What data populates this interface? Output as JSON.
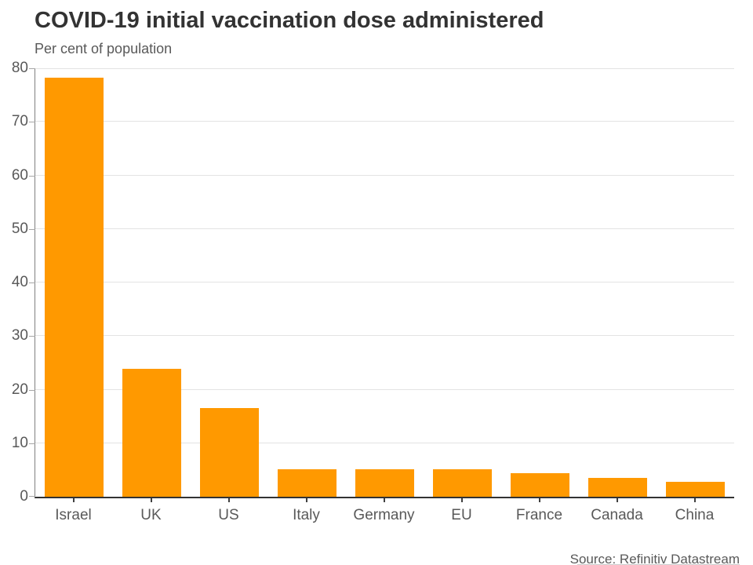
{
  "page": {
    "title": "COVID-19 initial vaccination dose administered",
    "subtitle": "Per cent of population",
    "source": "Source: Refinitiv Datastream"
  },
  "colors": {
    "bar": "#FF9900",
    "title_text": "#333333",
    "muted_text": "#595959",
    "gridline": "#e3e3e3",
    "axis_line": "#333333"
  },
  "chart_data": {
    "type": "bar",
    "title": "COVID-19 initial vaccination dose administered",
    "subtitle": "Per cent of population",
    "source": "Source: Refinitiv Datastream",
    "categories": [
      "Israel",
      "UK",
      "US",
      "Italy",
      "Germany",
      "EU",
      "France",
      "Canada",
      "China"
    ],
    "values": [
      78.3,
      23.9,
      16.6,
      5.1,
      5.1,
      5.1,
      4.4,
      3.5,
      2.8
    ],
    "xlabel": "",
    "ylabel": "Per cent of population",
    "ylim": [
      0,
      80
    ],
    "yticks": [
      0,
      10,
      20,
      30,
      40,
      50,
      60,
      70,
      80
    ],
    "grid": true,
    "legend": false,
    "bar_color": "#FF9900"
  }
}
